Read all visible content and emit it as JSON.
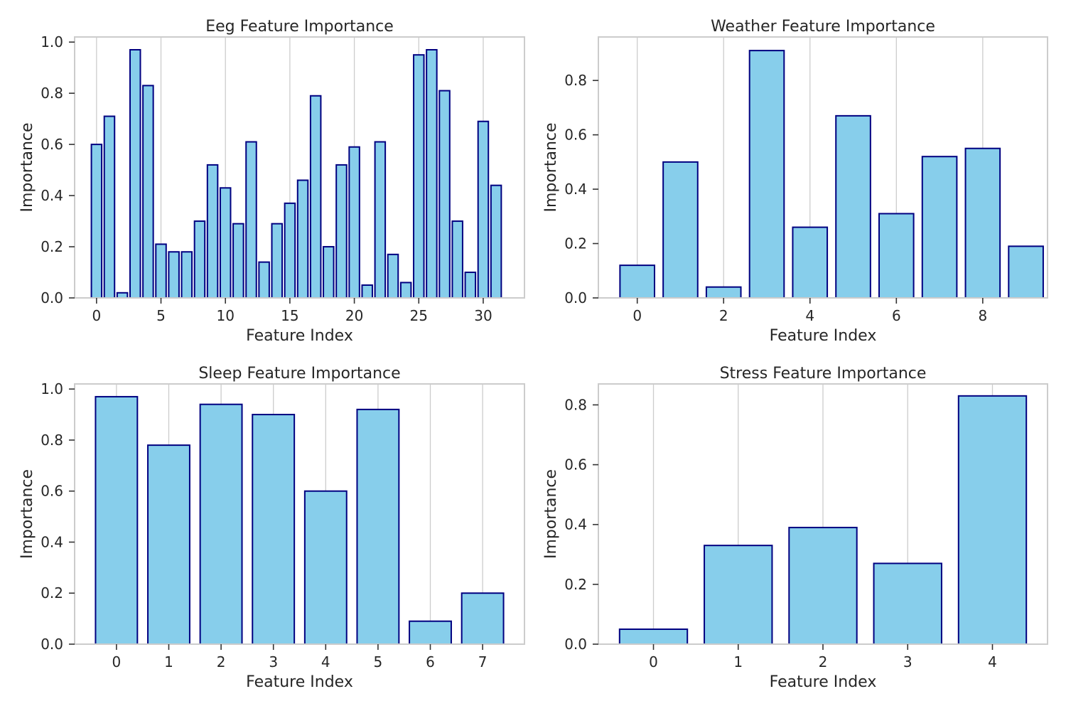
{
  "style": {
    "bar_fill": "#87ceeb",
    "bar_edge": "#000080",
    "grid": "#cccccc",
    "spine": "#cccccc",
    "text": "#262626",
    "background": "#ffffff"
  },
  "chart_data": [
    {
      "type": "bar",
      "title": "Eeg Feature Importance",
      "xlabel": "Feature Index",
      "ylabel": "Importance",
      "x": [
        0,
        1,
        2,
        3,
        4,
        5,
        6,
        7,
        8,
        9,
        10,
        11,
        12,
        13,
        14,
        15,
        16,
        17,
        18,
        19,
        20,
        21,
        22,
        23,
        24,
        25,
        26,
        27,
        28,
        29,
        30,
        31
      ],
      "values": [
        0.6,
        0.71,
        0.02,
        0.97,
        0.83,
        0.21,
        0.18,
        0.18,
        0.3,
        0.52,
        0.43,
        0.29,
        0.61,
        0.14,
        0.29,
        0.37,
        0.46,
        0.79,
        0.2,
        0.52,
        0.59,
        0.05,
        0.61,
        0.17,
        0.06,
        0.95,
        0.97,
        0.81,
        0.3,
        0.1,
        0.69,
        0.44
      ],
      "xlim": [
        -1.7,
        33.2
      ],
      "ylim": [
        0,
        1.02
      ],
      "xticks": [
        0,
        5,
        10,
        15,
        20,
        25,
        30
      ],
      "yticks": [
        0.0,
        0.2,
        0.4,
        0.6,
        0.8,
        1.0
      ],
      "ytick_labels": [
        "0.0",
        "0.2",
        "0.4",
        "0.6",
        "0.8",
        "1.0"
      ],
      "grid": "x"
    },
    {
      "type": "bar",
      "title": "Weather Feature Importance",
      "xlabel": "Feature Index",
      "ylabel": "Importance",
      "x": [
        0,
        1,
        2,
        3,
        4,
        5,
        6,
        7,
        8,
        9
      ],
      "values": [
        0.12,
        0.5,
        0.04,
        0.91,
        0.26,
        0.67,
        0.31,
        0.52,
        0.55,
        0.19
      ],
      "xlim": [
        -0.9,
        9.5
      ],
      "ylim": [
        0,
        0.96
      ],
      "xticks": [
        0,
        2,
        4,
        6,
        8
      ],
      "yticks": [
        0.0,
        0.2,
        0.4,
        0.6,
        0.8
      ],
      "ytick_labels": [
        "0.0",
        "0.2",
        "0.4",
        "0.6",
        "0.8"
      ],
      "grid": "x"
    },
    {
      "type": "bar",
      "title": "Sleep Feature Importance",
      "xlabel": "Feature Index",
      "ylabel": "Importance",
      "x": [
        0,
        1,
        2,
        3,
        4,
        5,
        6,
        7
      ],
      "values": [
        0.97,
        0.78,
        0.94,
        0.9,
        0.6,
        0.92,
        0.09,
        0.2
      ],
      "xlim": [
        -0.8,
        7.8
      ],
      "ylim": [
        0,
        1.02
      ],
      "xticks": [
        0,
        1,
        2,
        3,
        4,
        5,
        6,
        7
      ],
      "yticks": [
        0.0,
        0.2,
        0.4,
        0.6,
        0.8,
        1.0
      ],
      "ytick_labels": [
        "0.0",
        "0.2",
        "0.4",
        "0.6",
        "0.8",
        "1.0"
      ],
      "grid": "x"
    },
    {
      "type": "bar",
      "title": "Stress Feature Importance",
      "xlabel": "Feature Index",
      "ylabel": "Importance",
      "x": [
        0,
        1,
        2,
        3,
        4
      ],
      "values": [
        0.05,
        0.33,
        0.39,
        0.27,
        0.83
      ],
      "xlim": [
        -0.65,
        4.65
      ],
      "ylim": [
        0,
        0.87
      ],
      "xticks": [
        0,
        1,
        2,
        3,
        4
      ],
      "yticks": [
        0.0,
        0.2,
        0.4,
        0.6,
        0.8
      ],
      "ytick_labels": [
        "0.0",
        "0.2",
        "0.4",
        "0.6",
        "0.8"
      ],
      "grid": "x"
    }
  ]
}
